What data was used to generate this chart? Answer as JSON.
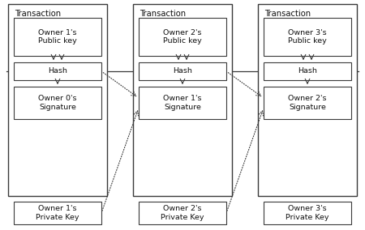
{
  "background_color": "#ffffff",
  "fig_width": 4.5,
  "fig_height": 2.84,
  "dpi": 100,
  "transactions": [
    {
      "label": "Transaction",
      "col": 0,
      "pub_key_label": "Owner 1's\nPublic key",
      "hash_label": "Hash",
      "sig_label": "Owner 0's\nSignature",
      "priv_key_label": "Owner 1's\nPrivate Key"
    },
    {
      "label": "Transaction",
      "col": 1,
      "pub_key_label": "Owner 2's\nPublic key",
      "hash_label": "Hash",
      "sig_label": "Owner 1's\nSignature",
      "priv_key_label": "Owner 2's\nPrivate Key"
    },
    {
      "label": "Transaction",
      "col": 2,
      "pub_key_label": "Owner 3's\nPublic key",
      "hash_label": "Hash",
      "sig_label": "Owner 2's\nSignature",
      "priv_key_label": "Owner 3's\nPrivate Key"
    }
  ],
  "box_facecolor": "#ffffff",
  "box_edgecolor": "#3a3a3a",
  "text_color": "#111111",
  "line_color": "#3a3a3a",
  "dotted_color": "#3a3a3a",
  "label_fontsize": 6.8,
  "title_fontsize": 7.2,
  "outer_lw": 1.0,
  "inner_lw": 0.8
}
